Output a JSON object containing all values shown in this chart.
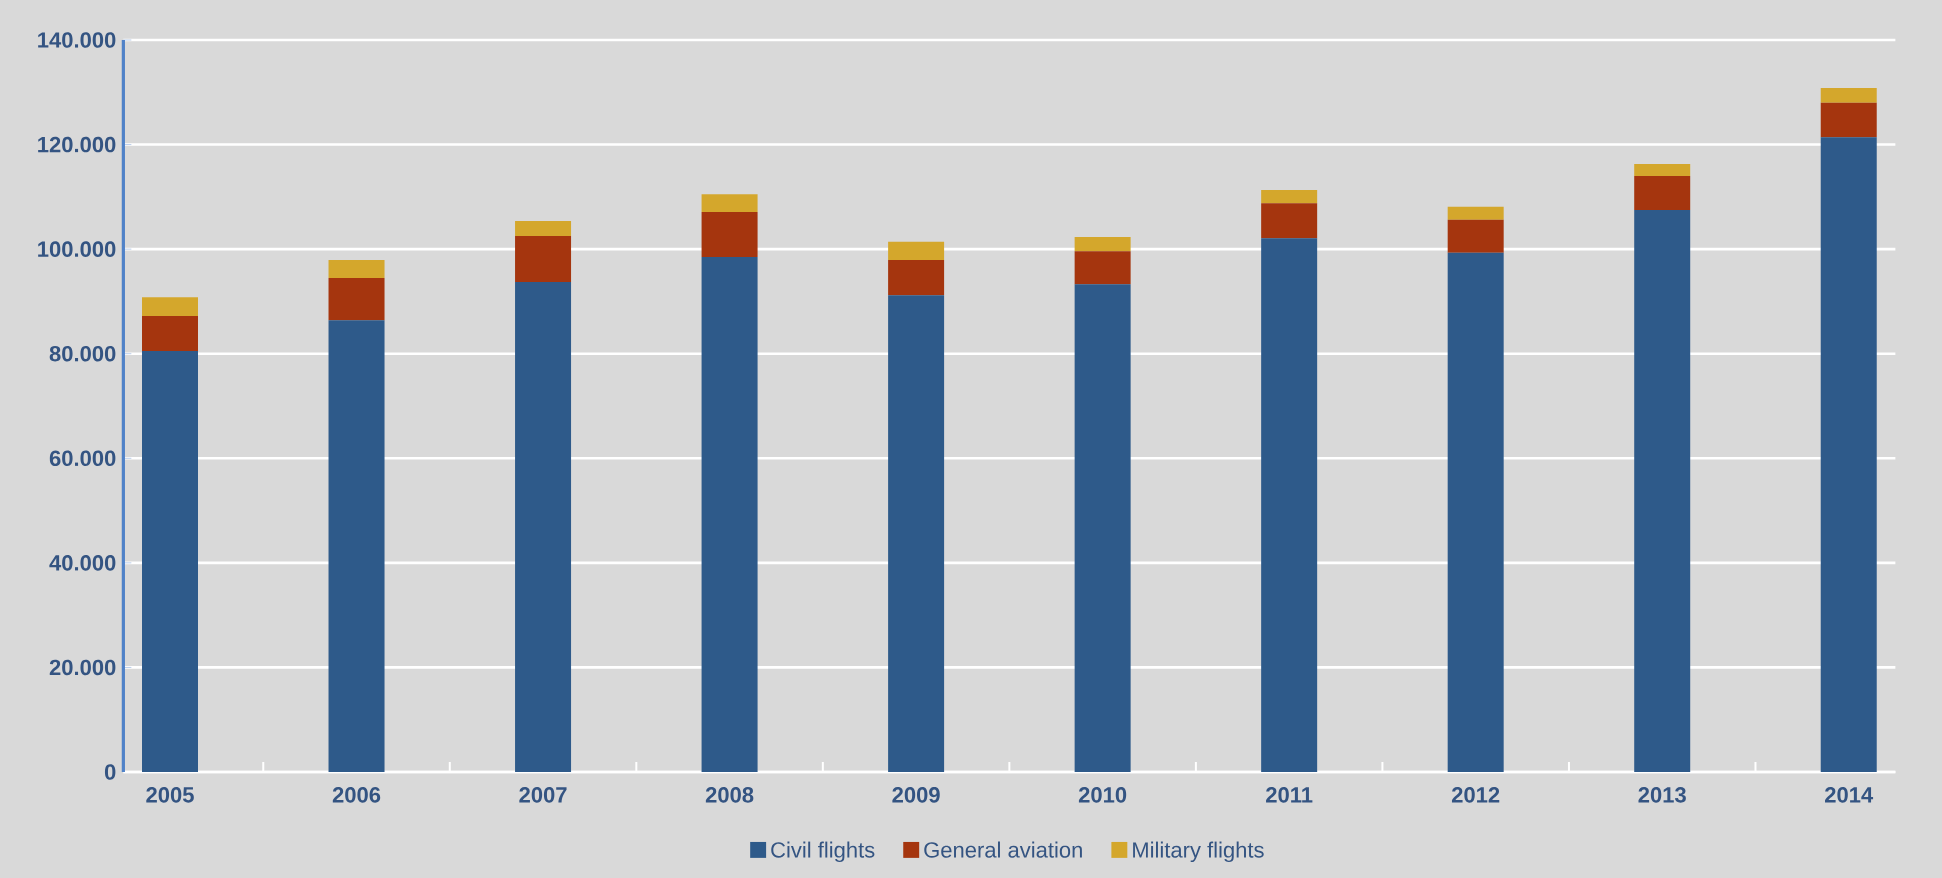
{
  "chart_data": {
    "type": "bar",
    "stacked": true,
    "categories": [
      "2005",
      "2006",
      "2007",
      "2008",
      "2009",
      "2010",
      "2011",
      "2012",
      "2013",
      "2014"
    ],
    "series": [
      {
        "name": "Civil flights",
        "color": "#2e5a8a",
        "values": [
          80500,
          86400,
          93700,
          98500,
          91200,
          93300,
          102100,
          99300,
          107500,
          121400
        ]
      },
      {
        "name": "General aviation",
        "color": "#a5350e",
        "values": [
          6700,
          8100,
          8800,
          8600,
          6700,
          6300,
          6700,
          6300,
          6500,
          6600
        ]
      },
      {
        "name": "Military flights",
        "color": "#d4a72c",
        "values": [
          3600,
          3400,
          2900,
          3400,
          3500,
          2700,
          2500,
          2500,
          2300,
          2800
        ]
      }
    ],
    "ylim": [
      0,
      140000
    ],
    "yticks": [
      0,
      {
        "value": 20000,
        "label": "20.000"
      },
      {
        "value": 40000,
        "label": "40.000"
      },
      {
        "value": 60000,
        "label": "60.000"
      },
      {
        "value": 80000,
        "label": "80.000"
      },
      {
        "value": 100000,
        "label": "100.000"
      },
      {
        "value": 120000,
        "label": "120.000"
      },
      {
        "value": 140000,
        "label": "140.000"
      }
    ],
    "grid": "y",
    "legend": "bottom"
  }
}
